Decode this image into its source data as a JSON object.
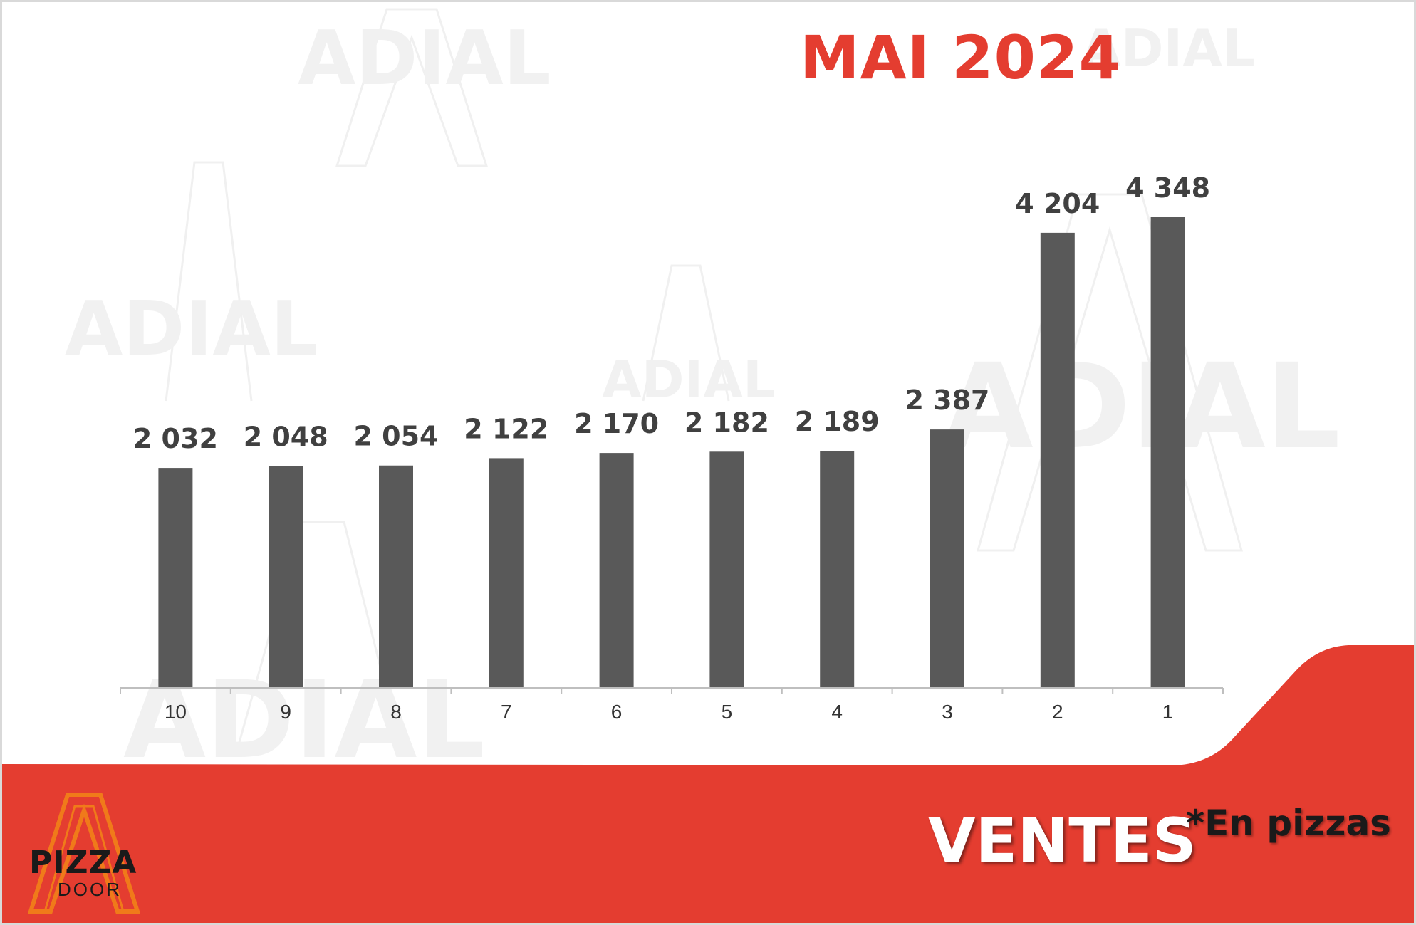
{
  "title": "MAI 2024",
  "footer": {
    "title": "VENTES",
    "note": "*En pizzas"
  },
  "logo": {
    "brand": "PIZZA",
    "sub": "DOOR"
  },
  "watermark": "ADIAL",
  "colors": {
    "accent": "#e43d30",
    "bar": "#595959",
    "background": "#ffffff",
    "logo_orange": "#f07a1a"
  },
  "chart_data": {
    "type": "bar",
    "title": "MAI 2024",
    "xlabel": "",
    "ylabel": "",
    "categories": [
      "10",
      "9",
      "8",
      "7",
      "6",
      "5",
      "4",
      "3",
      "2",
      "1"
    ],
    "values": [
      2032,
      2048,
      2054,
      2122,
      2170,
      2182,
      2189,
      2387,
      4204,
      4348
    ],
    "value_labels": [
      "2 032",
      "2 048",
      "2 054",
      "2 122",
      "2 170",
      "2 182",
      "2 189",
      "2 387",
      "4 204",
      "4 348"
    ],
    "ylim": [
      0,
      4348
    ],
    "grid": false,
    "legend": "none"
  }
}
